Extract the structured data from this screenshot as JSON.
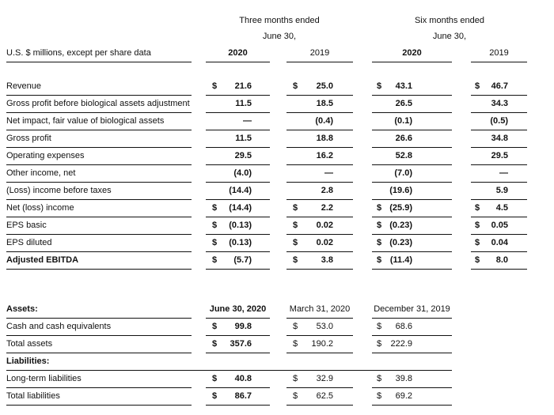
{
  "income": {
    "group_headers": [
      "Three months ended",
      "Six months ended"
    ],
    "group_subheaders": [
      "June 30,",
      "June 30,"
    ],
    "unit_label": "U.S. $ millions, except per share data",
    "columns": [
      "2020",
      "2019",
      "2020",
      "2019"
    ],
    "rows": [
      {
        "label": "Revenue",
        "values": [
          [
            "$",
            "21.6"
          ],
          [
            "$",
            "25.0"
          ],
          [
            "$",
            "43.1"
          ],
          [
            "$",
            "46.7"
          ]
        ]
      },
      {
        "label": "Gross profit before biological assets adjustment",
        "values": [
          [
            "",
            "11.5"
          ],
          [
            "",
            "18.5"
          ],
          [
            "",
            "26.5"
          ],
          [
            "",
            "34.3"
          ]
        ]
      },
      {
        "label": "Net impact, fair value of biological assets",
        "values": [
          [
            "",
            "—"
          ],
          [
            "",
            "(0.4)"
          ],
          [
            "",
            "(0.1)"
          ],
          [
            "",
            "(0.5)"
          ]
        ]
      },
      {
        "label": "Gross profit",
        "values": [
          [
            "",
            "11.5"
          ],
          [
            "",
            "18.8"
          ],
          [
            "",
            "26.6"
          ],
          [
            "",
            "34.8"
          ]
        ]
      },
      {
        "label": "Operating expenses",
        "values": [
          [
            "",
            "29.5"
          ],
          [
            "",
            "16.2"
          ],
          [
            "",
            "52.8"
          ],
          [
            "",
            "29.5"
          ]
        ]
      },
      {
        "label": "Other income, net",
        "values": [
          [
            "",
            "(4.0)"
          ],
          [
            "",
            "—"
          ],
          [
            "",
            "(7.0)"
          ],
          [
            "",
            "—"
          ]
        ]
      },
      {
        "label": "(Loss) income before taxes",
        "values": [
          [
            "",
            "(14.4)"
          ],
          [
            "",
            "2.8"
          ],
          [
            "",
            "(19.6)"
          ],
          [
            "",
            "5.9"
          ]
        ]
      },
      {
        "label": "Net (loss) income",
        "values": [
          [
            "$",
            "(14.4)"
          ],
          [
            "$",
            "2.2"
          ],
          [
            "$",
            "(25.9)"
          ],
          [
            "$",
            "4.5"
          ]
        ]
      },
      {
        "label": "EPS basic",
        "values": [
          [
            "$",
            "(0.13)"
          ],
          [
            "$",
            "0.02"
          ],
          [
            "$",
            "(0.23)"
          ],
          [
            "$",
            "0.05"
          ]
        ]
      },
      {
        "label": "EPS diluted",
        "values": [
          [
            "$",
            "(0.13)"
          ],
          [
            "$",
            "0.02"
          ],
          [
            "$",
            "(0.23)"
          ],
          [
            "$",
            "0.04"
          ]
        ]
      },
      {
        "label": "Adjusted EBITDA",
        "bold": true,
        "values": [
          [
            "$",
            "(5.7)"
          ],
          [
            "$",
            "3.8"
          ],
          [
            "$",
            "(11.4)"
          ],
          [
            "$",
            "8.0"
          ]
        ]
      }
    ]
  },
  "balance": {
    "label": "Assets:",
    "columns": [
      "June 30, 2020",
      "March 31, 2020",
      "December 31, 2019"
    ],
    "rows": [
      {
        "label": "Cash and cash equivalents",
        "values": [
          [
            "$",
            "99.8"
          ],
          [
            "$",
            "53.0"
          ],
          [
            "$",
            "68.6"
          ]
        ]
      },
      {
        "label": "Total assets",
        "values": [
          [
            "$",
            "357.6"
          ],
          [
            "$",
            "190.2"
          ],
          [
            "$",
            "222.9"
          ]
        ]
      },
      {
        "label": "Liabilities:",
        "section": true,
        "values": []
      },
      {
        "label": "Long-term liabilities",
        "values": [
          [
            "$",
            "40.8"
          ],
          [
            "$",
            "32.9"
          ],
          [
            "$",
            "39.8"
          ]
        ]
      },
      {
        "label": "Total liabilities",
        "values": [
          [
            "$",
            "86.7"
          ],
          [
            "$",
            "62.5"
          ],
          [
            "$",
            "69.2"
          ]
        ]
      }
    ]
  }
}
